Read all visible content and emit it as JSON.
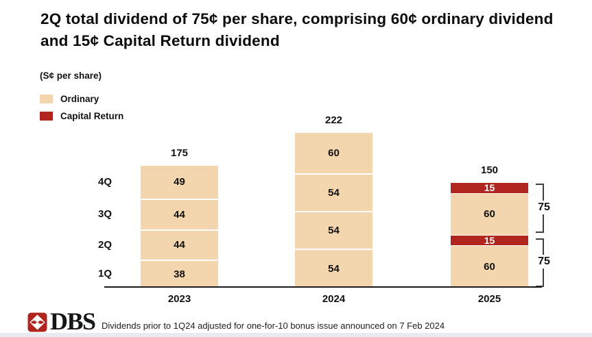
{
  "title": "2Q total dividend of 75¢ per share, comprising 60¢ ordinary dividend and 15¢ Capital Return dividend",
  "unit_label": "(S¢ per share)",
  "legend": [
    {
      "name": "ordinary",
      "label": "Ordinary",
      "color": "#F3D6AE"
    },
    {
      "name": "capital-return",
      "label": "Capital Return",
      "color": "#B0251E"
    }
  ],
  "colors": {
    "ordinary_fill": "#F3D6AE",
    "capital_return_fill": "#B0251E",
    "segment_text": "#111111",
    "red_segment_text": "#FFFFFF",
    "axis": "#1a1a1a",
    "dbs_red": "#B0251E",
    "footer_strip": "#E9EBF3"
  },
  "chart_data": {
    "type": "bar",
    "stacked": true,
    "title": "2Q total dividend of 75¢ per share, comprising 60¢ ordinary dividend and 15¢ Capital Return dividend",
    "ylabel": "(S¢ per share)",
    "unit": "S¢ per share",
    "grid": false,
    "legend_position": "top-left",
    "ylim": [
      0,
      230
    ],
    "quarter_axis_labels": [
      "4Q",
      "3Q",
      "2Q",
      "1Q"
    ],
    "categories": [
      "2023",
      "2024",
      "2025"
    ],
    "series_names": [
      "Ordinary",
      "Capital Return"
    ],
    "bars": [
      {
        "year": "2023",
        "total": 175,
        "total_label": "175",
        "segments": [
          {
            "quarter": "1Q",
            "series": "Ordinary",
            "value": 38
          },
          {
            "quarter": "2Q",
            "series": "Ordinary",
            "value": 44
          },
          {
            "quarter": "3Q",
            "series": "Ordinary",
            "value": 44
          },
          {
            "quarter": "4Q",
            "series": "Ordinary",
            "value": 49
          }
        ]
      },
      {
        "year": "2024",
        "total": 222,
        "total_label": "222",
        "segments": [
          {
            "quarter": "1Q",
            "series": "Ordinary",
            "value": 54
          },
          {
            "quarter": "2Q",
            "series": "Ordinary",
            "value": 54
          },
          {
            "quarter": "3Q",
            "series": "Ordinary",
            "value": 54
          },
          {
            "quarter": "4Q",
            "series": "Ordinary",
            "value": 60
          }
        ]
      },
      {
        "year": "2025",
        "total": 150,
        "total_label": "150",
        "segments": [
          {
            "quarter": "1Q",
            "series": "Ordinary",
            "value": 60
          },
          {
            "quarter": "1Q",
            "series": "Capital Return",
            "value": 15
          },
          {
            "quarter": "2Q",
            "series": "Ordinary",
            "value": 60
          },
          {
            "quarter": "2Q",
            "series": "Capital Return",
            "value": 15
          }
        ]
      }
    ],
    "annotations": [
      {
        "label": "75",
        "bar": "2025",
        "covers_segments": [
          2,
          3
        ],
        "meaning": "2Q total per share"
      },
      {
        "label": "75",
        "bar": "2025",
        "covers_segments": [
          0,
          1
        ],
        "meaning": "1Q total per share"
      }
    ]
  },
  "footer": {
    "logo_text": "DBS",
    "note": "Dividends prior to 1Q24 adjusted for one-for-10 bonus issue announced on 7 Feb 2024"
  }
}
